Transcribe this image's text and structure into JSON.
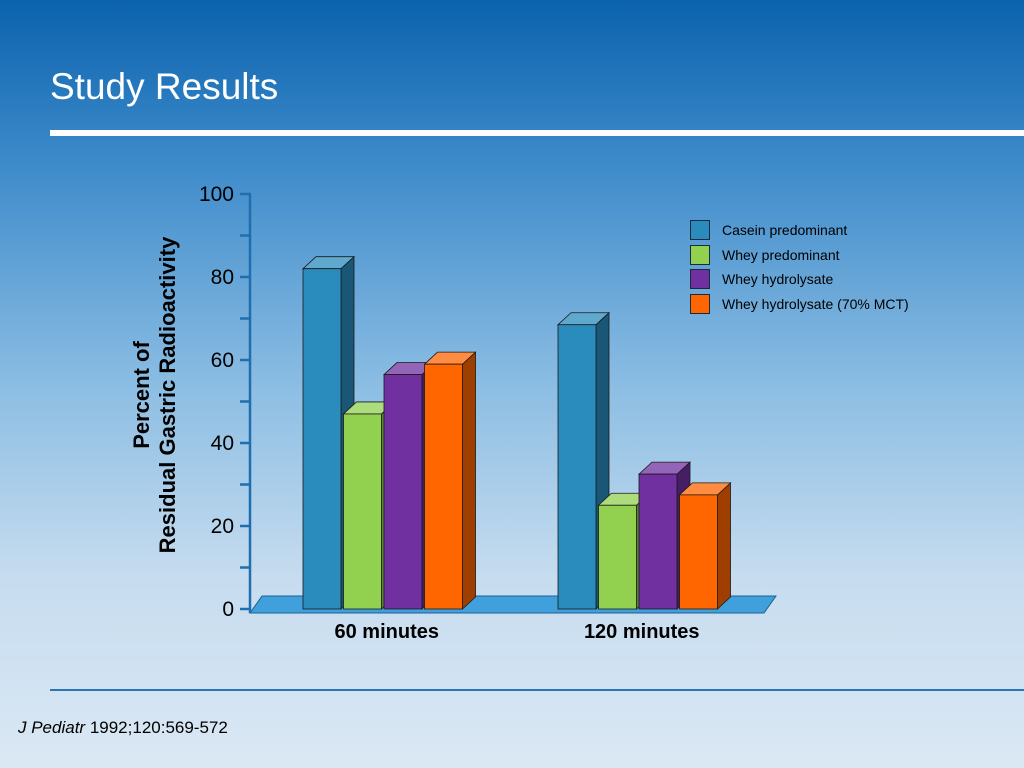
{
  "slide": {
    "title": "Study Results",
    "citation_journal": "J Pediatr",
    "citation_ref": " 1992;120:569-572"
  },
  "chart_data": {
    "type": "bar",
    "title": "",
    "xlabel": "",
    "ylabel_line1": "Percent of",
    "ylabel_line2": "Residual Gastric Radioactivity",
    "ylim": [
      0,
      100
    ],
    "yticks": [
      "0",
      "20",
      "40",
      "60",
      "80",
      "100"
    ],
    "categories": [
      "60 minutes",
      "120 minutes"
    ],
    "series": [
      {
        "name": "Casein predominant",
        "color": "#2a8bbd",
        "values": [
          82,
          68.5
        ]
      },
      {
        "name": "Whey predominant",
        "color": "#92d050",
        "values": [
          47,
          25
        ]
      },
      {
        "name": "Whey hydrolysate",
        "color": "#7030a0",
        "values": [
          56.5,
          32.5
        ]
      },
      {
        "name": "Whey hydrolysate (70% MCT)",
        "color": "#ff6600",
        "values": [
          59,
          27.5
        ]
      }
    ],
    "legend_position": "top-right",
    "grid": false
  }
}
